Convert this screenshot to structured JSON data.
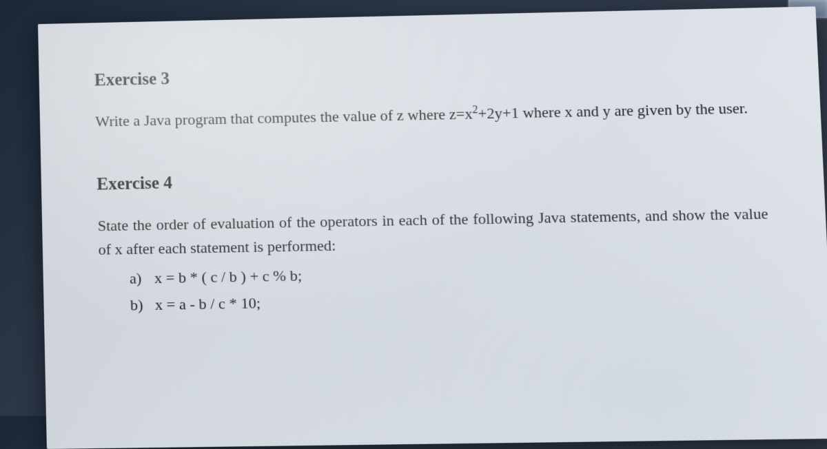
{
  "page": {
    "background_gradient": [
      "#1a2838",
      "#3a4252"
    ],
    "paper_color": "#d8dde4",
    "text_color": "#1a1a1f",
    "font_family": "Times New Roman",
    "heading_fontsize_pt": 19,
    "body_fontsize_pt": 17
  },
  "exercise3": {
    "heading": "Exercise 3",
    "body_prefix": "Write a Java program that computes the value of z where z=x",
    "body_sup": "2",
    "body_suffix": "+2y+1 where x and y are given by the user."
  },
  "exercise4": {
    "heading": "Exercise 4",
    "intro": "State the order of evaluation of the operators in each of the following Java statements, and show the value of x after each statement is performed:",
    "items": [
      {
        "letter": "a)",
        "code": "x = b * ( c / b ) + c % b;"
      },
      {
        "letter": "b)",
        "code": "x =  a - b / c * 10;"
      }
    ]
  }
}
